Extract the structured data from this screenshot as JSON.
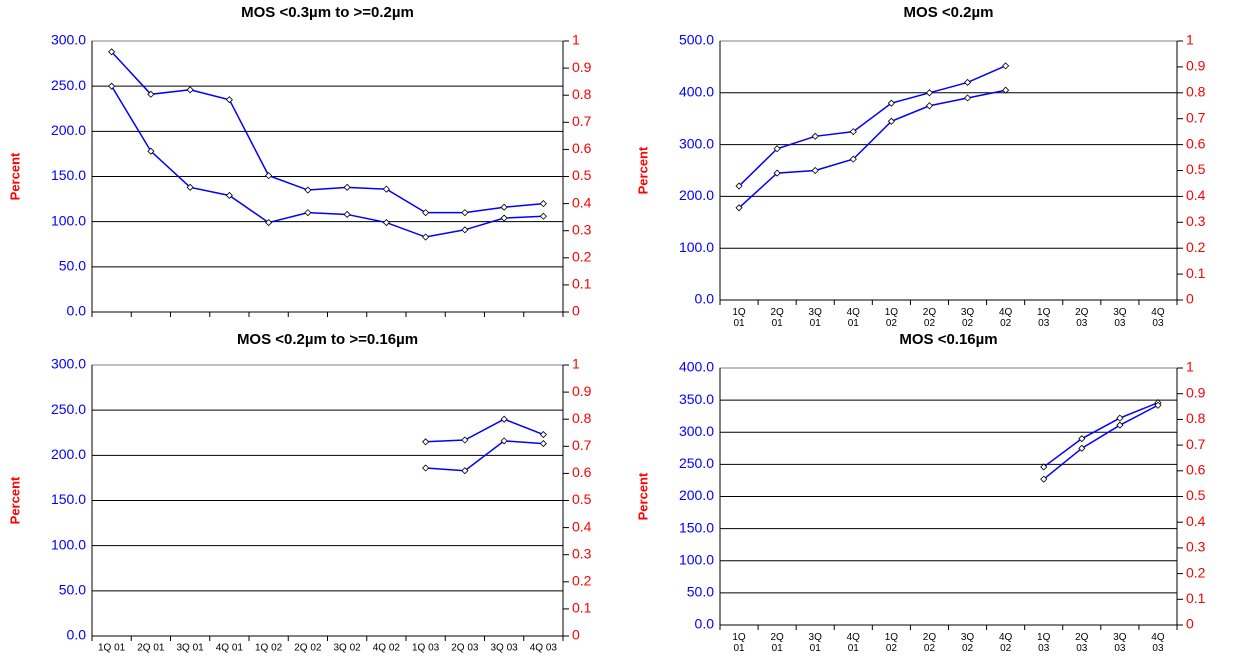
{
  "chart_data": [
    {
      "type": "line",
      "title": "MOS <0.3µm to >=0.2µm",
      "y_label": "Percent",
      "categories": [
        null,
        null,
        null,
        null,
        null,
        null,
        null,
        null,
        null,
        null,
        null,
        null
      ],
      "series": [
        {
          "color": "#0000ff",
          "values": [
            288,
            241,
            246,
            235,
            151,
            135,
            138,
            136,
            110,
            110,
            116,
            120
          ]
        },
        {
          "color": "#0000ff",
          "values": [
            250,
            178,
            138,
            129,
            99,
            110,
            108,
            99,
            83,
            91,
            104,
            106
          ]
        }
      ],
      "ylim": [
        0,
        300
      ],
      "yticks": [
        {
          "value": 0,
          "label": "0.0"
        },
        {
          "value": 50,
          "label": "50.0"
        },
        {
          "value": 100,
          "label": "100.0"
        },
        {
          "value": 150,
          "label": "150.0"
        },
        {
          "value": 200,
          "label": "200.0"
        },
        {
          "value": 250,
          "label": "250.0"
        },
        {
          "value": 300,
          "label": "300.0"
        }
      ],
      "y2lim": [
        0,
        1
      ],
      "y2ticks": [
        0,
        0.1,
        0.2,
        0.3,
        0.4,
        0.5,
        0.6,
        0.7,
        0.8,
        0.9,
        1
      ],
      "grid": true
    },
    {
      "type": "line",
      "title": "MOS <0.2µm",
      "y_label": "Percent",
      "categories": [
        "1Q 01",
        "2Q 01",
        "3Q 01",
        "4Q 01",
        "1Q 02",
        "2Q 02",
        "3Q 02",
        "4Q 02",
        "1Q 03",
        "2Q 03",
        "3Q 03",
        "4Q 03"
      ],
      "series": [
        {
          "color": "#0000ff",
          "values": [
            220,
            292,
            316,
            325,
            380,
            400,
            420,
            452,
            null,
            null,
            null,
            null
          ]
        },
        {
          "color": "#0000ff",
          "values": [
            178,
            245,
            250,
            272,
            345,
            375,
            390,
            405,
            null,
            null,
            null,
            null
          ]
        }
      ],
      "ylim": [
        0,
        500
      ],
      "yticks": [
        {
          "value": 0,
          "label": "0.0"
        },
        {
          "value": 100,
          "label": "100.0"
        },
        {
          "value": 200,
          "label": "200.0"
        },
        {
          "value": 300,
          "label": "300.0"
        },
        {
          "value": 400,
          "label": "400.0"
        },
        {
          "value": 500,
          "label": "500.0"
        }
      ],
      "y2lim": [
        0,
        1
      ],
      "y2ticks": [
        0,
        0.1,
        0.2,
        0.3,
        0.4,
        0.5,
        0.6,
        0.7,
        0.8,
        0.9,
        1
      ],
      "grid": true
    },
    {
      "type": "line",
      "title": "MOS <0.2µm to >=0.16µm",
      "y_label": "Percent",
      "categories": [
        "1Q 01",
        "2Q 01",
        "3Q 01",
        "4Q 01",
        "1Q 02",
        "2Q 02",
        "3Q 02",
        "4Q 02",
        "1Q 03",
        "2Q 03",
        "3Q 03",
        "4Q 03"
      ],
      "series": [
        {
          "color": "#0000ff",
          "values": [
            null,
            null,
            null,
            null,
            null,
            null,
            null,
            null,
            215,
            217,
            240,
            223
          ]
        },
        {
          "color": "#0000ff",
          "values": [
            null,
            null,
            null,
            null,
            null,
            null,
            null,
            null,
            186,
            183,
            216,
            213
          ]
        }
      ],
      "ylim": [
        0,
        300
      ],
      "yticks": [
        {
          "value": 0,
          "label": "0.0"
        },
        {
          "value": 50,
          "label": "50.0"
        },
        {
          "value": 100,
          "label": "100.0"
        },
        {
          "value": 150,
          "label": "150.0"
        },
        {
          "value": 200,
          "label": "200.0"
        },
        {
          "value": 250,
          "label": "250.0"
        },
        {
          "value": 300,
          "label": "300.0"
        }
      ],
      "y2lim": [
        0,
        1
      ],
      "y2ticks": [
        0,
        0.1,
        0.2,
        0.3,
        0.4,
        0.5,
        0.6,
        0.7,
        0.8,
        0.9,
        1
      ],
      "grid": true
    },
    {
      "type": "line",
      "title": "MOS <0.16µm",
      "y_label": "Percent",
      "categories": [
        "1Q 01",
        "2Q 01",
        "3Q 01",
        "4Q 01",
        "1Q 02",
        "2Q 02",
        "3Q 02",
        "4Q 02",
        "1Q 03",
        "2Q 03",
        "3Q 03",
        "4Q 03"
      ],
      "series": [
        {
          "color": "#0000ff",
          "values": [
            null,
            null,
            null,
            null,
            null,
            null,
            null,
            null,
            246,
            290,
            322,
            346
          ]
        },
        {
          "color": "#0000ff",
          "values": [
            null,
            null,
            null,
            null,
            null,
            null,
            null,
            null,
            227,
            275,
            311,
            342
          ]
        }
      ],
      "ylim": [
        0,
        400
      ],
      "yticks": [
        {
          "value": 0,
          "label": "0.0"
        },
        {
          "value": 50,
          "label": "50.0"
        },
        {
          "value": 100,
          "label": "100.0"
        },
        {
          "value": 150,
          "label": "150.0"
        },
        {
          "value": 200,
          "label": "200.0"
        },
        {
          "value": 250,
          "label": "250.0"
        },
        {
          "value": 300,
          "label": "300.0"
        },
        {
          "value": 350,
          "label": "350.0"
        },
        {
          "value": 400,
          "label": "400.0"
        }
      ],
      "y2lim": [
        0,
        1
      ],
      "y2ticks": [
        0,
        0.1,
        0.2,
        0.3,
        0.4,
        0.5,
        0.6,
        0.7,
        0.8,
        0.9,
        1
      ],
      "grid": true
    }
  ]
}
